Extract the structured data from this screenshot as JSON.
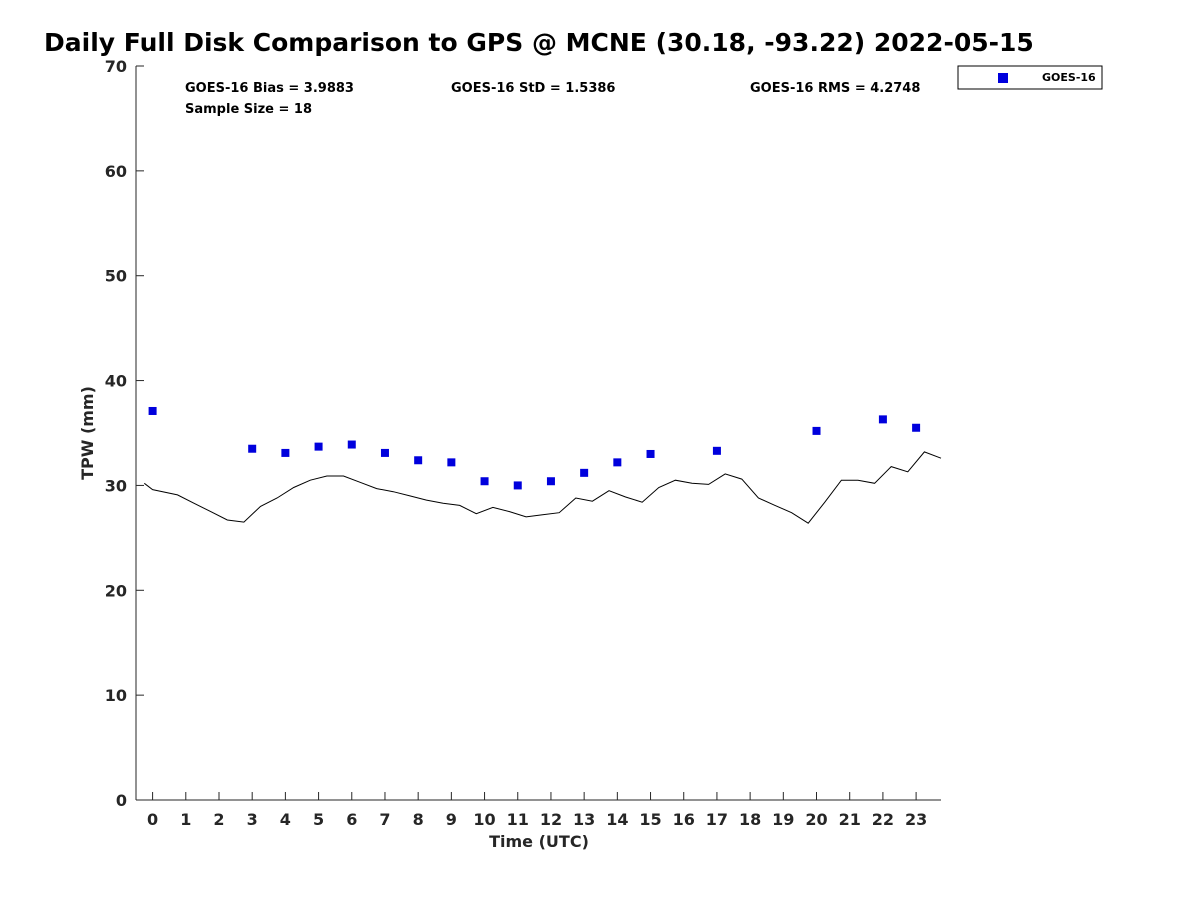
{
  "chart_data": {
    "type": "scatter",
    "title": "Daily Full Disk Comparison to GPS @ MCNE (30.18, -93.22) 2022-05-15",
    "xlabel": "Time (UTC)",
    "ylabel": "TPW (mm)",
    "xlim": [
      -0.5,
      23.75
    ],
    "ylim": [
      0,
      70
    ],
    "x_ticks": [
      0,
      1,
      2,
      3,
      4,
      5,
      6,
      7,
      8,
      9,
      10,
      11,
      12,
      13,
      14,
      15,
      16,
      17,
      18,
      19,
      20,
      21,
      22,
      23
    ],
    "y_ticks": [
      0,
      10,
      20,
      30,
      40,
      50,
      60,
      70
    ],
    "grid": false,
    "legend_position": "top-right (outside plot)",
    "stats": {
      "bias": "GOES-16 Bias = 3.9883",
      "std": "GOES-16 StD = 1.5386",
      "rms": "GOES-16 RMS = 4.2748",
      "sample_size": "Sample Size = 18"
    },
    "series": [
      {
        "name": "GOES-16",
        "style": "markers",
        "color": "#0000dd",
        "marker": "square",
        "x": [
          0,
          3,
          4,
          5,
          6,
          7,
          8,
          9,
          10,
          11,
          12,
          13,
          14,
          15,
          17,
          20,
          22,
          23
        ],
        "y": [
          37.1,
          33.5,
          33.1,
          33.7,
          33.9,
          33.1,
          32.4,
          32.2,
          30.4,
          30.0,
          30.4,
          31.2,
          32.2,
          33.0,
          33.3,
          35.2,
          36.3,
          35.5
        ]
      },
      {
        "style": "line",
        "color": "#000000",
        "x": [
          -0.25,
          0.0,
          0.75,
          1.25,
          1.75,
          2.25,
          2.75,
          3.25,
          3.75,
          4.25,
          4.75,
          5.25,
          5.75,
          6.25,
          6.75,
          7.25,
          7.75,
          8.25,
          8.75,
          9.25,
          9.75,
          10.25,
          10.75,
          11.25,
          11.75,
          12.25,
          12.75,
          13.25,
          13.75,
          14.25,
          14.75,
          15.25,
          15.75,
          16.25,
          16.75,
          17.25,
          17.75,
          18.25,
          18.75,
          19.25,
          19.75,
          20.25,
          20.75,
          21.25,
          21.75,
          22.25,
          22.75,
          23.25,
          23.75
        ],
        "y": [
          30.2,
          29.6,
          29.1,
          28.3,
          27.5,
          26.7,
          26.5,
          28.0,
          28.8,
          29.8,
          30.5,
          30.9,
          30.9,
          30.3,
          29.7,
          29.4,
          29.0,
          28.6,
          28.3,
          28.1,
          27.3,
          27.9,
          27.5,
          27.0,
          27.2,
          27.4,
          28.8,
          28.5,
          29.5,
          28.9,
          28.4,
          29.8,
          30.5,
          30.2,
          30.1,
          31.1,
          30.6,
          28.8,
          28.1,
          27.4,
          26.4,
          28.4,
          30.5,
          30.5,
          30.2,
          31.8,
          31.3,
          33.2,
          32.6
        ]
      }
    ]
  }
}
